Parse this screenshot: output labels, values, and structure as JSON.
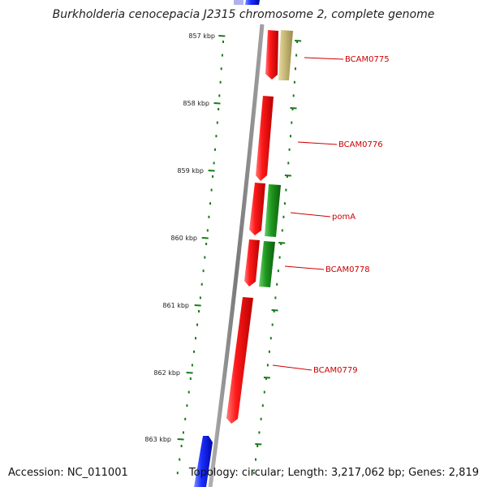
{
  "title": "Burkholderia cenocepacia J2315 chromosome 2, complete genome",
  "footer": {
    "accession": "Accession: NC_011001",
    "summary": "Topology: circular; Length: 3,217,062 bp; Genes: 2,819"
  },
  "colors": {
    "backbone": "#808080",
    "tick": "#1a7a1a",
    "label": "#cc0000",
    "gene_red": "#ee0000",
    "gene_green": "#1f8f1f",
    "gene_tan": "#c8bb7a",
    "gene_blue": "#0a1ee6"
  },
  "ticks": [
    {
      "label": "857 kbp"
    },
    {
      "label": "858 kbp"
    },
    {
      "label": "859 kbp"
    },
    {
      "label": "860 kbp"
    },
    {
      "label": "861 kbp"
    },
    {
      "label": "862 kbp"
    },
    {
      "label": "863 kbp"
    }
  ],
  "gene_labels": [
    {
      "text": "BCAM0775"
    },
    {
      "text": "BCAM0776"
    },
    {
      "text": "pomA"
    },
    {
      "text": "BCAM0778"
    },
    {
      "text": "BCAM0779"
    }
  ]
}
